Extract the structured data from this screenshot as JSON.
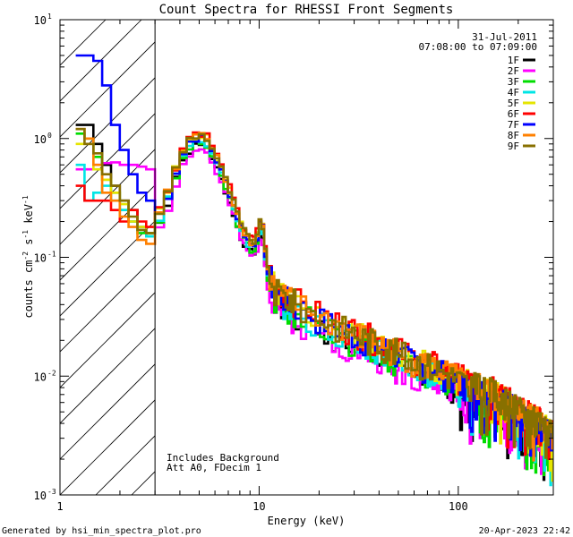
{
  "chart_data": {
    "type": "line",
    "title": "Count Spectra for RHESSI Front Segments",
    "xlabel": "Energy (keV)",
    "ylabel_parts": {
      "base": "counts cm",
      "exp1": "-2",
      "mid": " s",
      "exp2": "-1",
      "unit": " keV",
      "exp3": "-1"
    },
    "xscale": "log",
    "yscale": "log",
    "xlim": [
      1,
      300
    ],
    "ylim": [
      0.001,
      10
    ],
    "x_ticks": [
      {
        "value": 1,
        "label": "1"
      },
      {
        "value": 10,
        "label": "10"
      },
      {
        "value": 100,
        "label": "100"
      }
    ],
    "y_ticks": [
      {
        "value": 0.001,
        "base": "10",
        "exp": "-3"
      },
      {
        "value": 0.01,
        "base": "10",
        "exp": "-2"
      },
      {
        "value": 0.1,
        "base": "10",
        "exp": "-1"
      },
      {
        "value": 1,
        "base": "10",
        "exp": "0"
      },
      {
        "value": 10,
        "base": "10",
        "exp": "1"
      }
    ],
    "date": "31-Jul-2011",
    "time_range": "07:08:00 to 07:09:00",
    "excluded_region": [
      1,
      3
    ],
    "annotations": [
      "Includes Background",
      "Att A0, FDecim 1"
    ],
    "footer_left": "Generated by hsi_min_spectra_plot.pro",
    "footer_right": "20-Apr-2023 22:42",
    "base_profile": [
      [
        3.0,
        0.2
      ],
      [
        3.5,
        0.35
      ],
      [
        4.0,
        0.7
      ],
      [
        4.5,
        1.0
      ],
      [
        5.0,
        1.1
      ],
      [
        5.5,
        1.0
      ],
      [
        6.0,
        0.75
      ],
      [
        7.0,
        0.4
      ],
      [
        8.0,
        0.2
      ],
      [
        8.7,
        0.15
      ],
      [
        9.3,
        0.13
      ],
      [
        9.8,
        0.16
      ],
      [
        10.3,
        0.22
      ],
      [
        11.0,
        0.08
      ],
      [
        12.0,
        0.05
      ],
      [
        15.0,
        0.04
      ],
      [
        20.0,
        0.03
      ],
      [
        30.0,
        0.022
      ],
      [
        40.0,
        0.018
      ],
      [
        60.0,
        0.013
      ],
      [
        80.0,
        0.011
      ],
      [
        100.0,
        0.009
      ],
      [
        150.0,
        0.007
      ],
      [
        200.0,
        0.005
      ],
      [
        250.0,
        0.004
      ],
      [
        300.0,
        0.003
      ]
    ],
    "series": [
      {
        "name": "1F",
        "color": "#000000",
        "low": [
          1.3,
          1.3,
          0.9,
          0.6,
          0.4,
          0.3,
          0.25,
          0.18,
          0.16
        ],
        "scale": 0.8,
        "seed": 1
      },
      {
        "name": "2F",
        "color": "#ff00ff",
        "low": [
          0.55,
          0.55,
          0.6,
          0.62,
          0.63,
          0.6,
          0.6,
          0.58,
          0.55
        ],
        "scale": 0.75,
        "seed": 2
      },
      {
        "name": "3F",
        "color": "#00dd00",
        "low": [
          1.1,
          1.0,
          0.7,
          0.45,
          0.35,
          0.25,
          0.2,
          0.16,
          0.15
        ],
        "scale": 0.85,
        "seed": 3
      },
      {
        "name": "4F",
        "color": "#00e5e5",
        "low": [
          0.6,
          0.3,
          0.35,
          0.4,
          0.3,
          0.25,
          0.2,
          0.17,
          0.15
        ],
        "scale": 0.9,
        "seed": 4
      },
      {
        "name": "5F",
        "color": "#e5e500",
        "low": [
          0.9,
          0.9,
          0.55,
          0.45,
          0.35,
          0.28,
          0.2,
          0.18,
          0.16
        ],
        "scale": 1.0,
        "seed": 5
      },
      {
        "name": "6F",
        "color": "#ff0000",
        "low": [
          0.4,
          0.3,
          0.3,
          0.3,
          0.25,
          0.2,
          0.25,
          0.2,
          0.18
        ],
        "scale": 1.05,
        "seed": 6
      },
      {
        "name": "7F",
        "color": "#0000ff",
        "low": [
          5.0,
          5.0,
          4.5,
          2.8,
          1.3,
          0.8,
          0.5,
          0.35,
          0.3
        ],
        "scale": 0.95,
        "seed": 7
      },
      {
        "name": "8F",
        "color": "#ff8000",
        "low": [
          1.2,
          1.0,
          0.6,
          0.35,
          0.3,
          0.22,
          0.18,
          0.14,
          0.13
        ],
        "scale": 1.0,
        "seed": 8
      },
      {
        "name": "9F",
        "color": "#887000",
        "low": [
          1.2,
          0.9,
          0.75,
          0.5,
          0.4,
          0.3,
          0.22,
          0.17,
          0.16
        ],
        "scale": 1.0,
        "seed": 9
      }
    ]
  }
}
